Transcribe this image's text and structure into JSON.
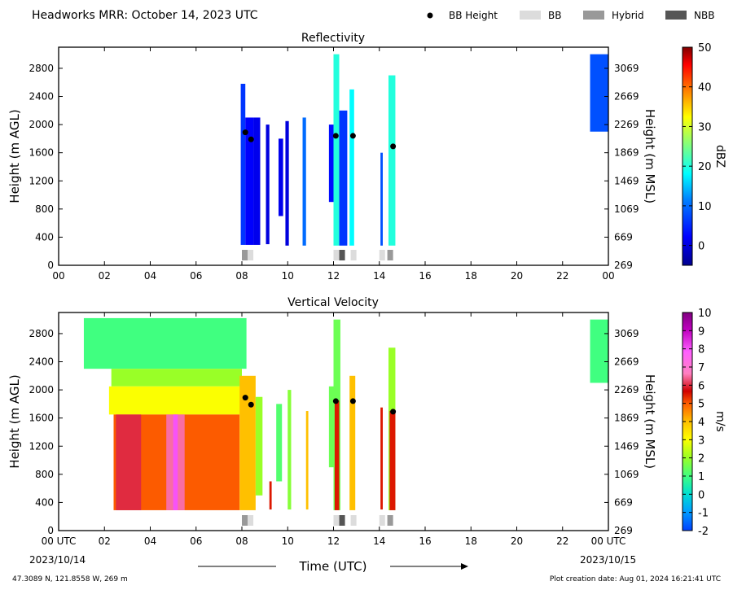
{
  "header": {
    "title": "Headworks MRR:  October 14, 2023 UTC",
    "legend": [
      {
        "label": "BB Height",
        "kind": "dot",
        "color": "#000000"
      },
      {
        "label": "BB",
        "kind": "box",
        "color": "#dcdcdc"
      },
      {
        "label": "Hybrid",
        "kind": "box",
        "color": "#999999"
      },
      {
        "label": "NBB",
        "kind": "box",
        "color": "#555555"
      }
    ]
  },
  "footer": {
    "location": "47.3089 N, 121.8558 W, 269 m",
    "creation": "Plot creation date: Aug 01, 2024 16:21:41 UTC",
    "xlabel": "Time (UTC)",
    "start_date": "2023/10/14",
    "end_date": "2023/10/15"
  },
  "chart_data": [
    {
      "type": "heatmap",
      "title": "Reflectivity",
      "ylabel": "Height (m AGL)",
      "ylabel_right": "Height (m MSL)",
      "xlim": [
        0,
        24
      ],
      "ylim": [
        0,
        3100
      ],
      "x_ticks": [
        "00",
        "02",
        "04",
        "06",
        "08",
        "10",
        "12",
        "14",
        "16",
        "18",
        "20",
        "22",
        "00"
      ],
      "y_ticks": [
        0,
        400,
        800,
        1200,
        1600,
        2000,
        2400,
        2800
      ],
      "y_ticks_right": [
        "269",
        "669",
        "1069",
        "1469",
        "1869",
        "2269",
        "2669",
        "3069"
      ],
      "colorbar": {
        "label": "dBZ",
        "min": -5,
        "max": 50,
        "ticks": [
          0,
          10,
          20,
          30,
          40,
          50
        ]
      },
      "bb_height": [
        {
          "x": 8.15,
          "y": 1890
        },
        {
          "x": 8.4,
          "y": 1790
        },
        {
          "x": 12.1,
          "y": 1840
        },
        {
          "x": 12.85,
          "y": 1840
        },
        {
          "x": 14.6,
          "y": 1690
        }
      ],
      "bb_type": [
        {
          "x0": 8.0,
          "x1": 8.25,
          "type": "Hybrid"
        },
        {
          "x0": 8.25,
          "x1": 8.5,
          "type": "BB"
        },
        {
          "x0": 12.0,
          "x1": 12.25,
          "type": "BB"
        },
        {
          "x0": 12.25,
          "x1": 12.5,
          "type": "NBB"
        },
        {
          "x0": 12.75,
          "x1": 13.0,
          "type": "BB"
        },
        {
          "x0": 14.0,
          "x1": 14.25,
          "type": "BB"
        },
        {
          "x0": 14.35,
          "x1": 14.6,
          "type": "Hybrid"
        }
      ],
      "regions": [
        {
          "x0": 7.95,
          "x1": 8.15,
          "y0": 290,
          "y1": 2580,
          "value": 6
        },
        {
          "x0": 8.15,
          "x1": 8.5,
          "y0": 290,
          "y1": 2100,
          "value": 2
        },
        {
          "x0": 8.5,
          "x1": 8.8,
          "y0": 290,
          "y1": 2100,
          "value": 1
        },
        {
          "x0": 9.05,
          "x1": 9.2,
          "y0": 300,
          "y1": 2000,
          "value": 0
        },
        {
          "x0": 9.6,
          "x1": 9.8,
          "y0": 700,
          "y1": 1800,
          "value": 1
        },
        {
          "x0": 9.9,
          "x1": 10.05,
          "y0": 280,
          "y1": 2050,
          "value": 0
        },
        {
          "x0": 10.65,
          "x1": 10.8,
          "y0": 280,
          "y1": 2100,
          "value": 10
        },
        {
          "x0": 11.8,
          "x1": 12.0,
          "y0": 900,
          "y1": 2000,
          "value": 3
        },
        {
          "x0": 12.0,
          "x1": 12.25,
          "y0": 280,
          "y1": 3000,
          "value": 20
        },
        {
          "x0": 12.25,
          "x1": 12.6,
          "y0": 280,
          "y1": 2200,
          "value": 6
        },
        {
          "x0": 12.7,
          "x1": 12.9,
          "y0": 280,
          "y1": 2500,
          "value": 18
        },
        {
          "x0": 14.05,
          "x1": 14.15,
          "y0": 280,
          "y1": 1600,
          "value": 8
        },
        {
          "x0": 14.4,
          "x1": 14.7,
          "y0": 280,
          "y1": 2700,
          "value": 20
        },
        {
          "x0": 23.2,
          "x1": 24.0,
          "y0": 1900,
          "y1": 3000,
          "value": 8
        }
      ]
    },
    {
      "type": "heatmap",
      "title": "Vertical Velocity",
      "ylabel": "Height (m AGL)",
      "ylabel_right": "Height (m MSL)",
      "xlim": [
        0,
        24
      ],
      "ylim": [
        0,
        3100
      ],
      "x_ticks": [
        "00 UTC",
        "02",
        "04",
        "06",
        "08",
        "10",
        "12",
        "14",
        "16",
        "18",
        "20",
        "22",
        "00 UTC"
      ],
      "y_ticks": [
        0,
        400,
        800,
        1200,
        1600,
        2000,
        2400,
        2800
      ],
      "y_ticks_right": [
        "269",
        "669",
        "1069",
        "1469",
        "1869",
        "2269",
        "2669",
        "3069"
      ],
      "colorbar": {
        "label": "m/s",
        "min": -2,
        "max": 10,
        "ticks": [
          -2,
          -1,
          0,
          1,
          2,
          3,
          4,
          5,
          6,
          7,
          8,
          9,
          10
        ]
      },
      "bb_height": [
        {
          "x": 8.15,
          "y": 1890
        },
        {
          "x": 8.4,
          "y": 1790
        },
        {
          "x": 12.1,
          "y": 1840
        },
        {
          "x": 12.85,
          "y": 1840
        },
        {
          "x": 14.6,
          "y": 1690
        }
      ],
      "bb_type": [
        {
          "x0": 8.0,
          "x1": 8.25,
          "type": "Hybrid"
        },
        {
          "x0": 8.25,
          "x1": 8.5,
          "type": "BB"
        },
        {
          "x0": 12.0,
          "x1": 12.25,
          "type": "BB"
        },
        {
          "x0": 12.25,
          "x1": 12.5,
          "type": "NBB"
        },
        {
          "x0": 12.75,
          "x1": 13.0,
          "type": "BB"
        },
        {
          "x0": 14.0,
          "x1": 14.25,
          "type": "BB"
        },
        {
          "x0": 14.35,
          "x1": 14.6,
          "type": "Hybrid"
        }
      ],
      "regions": [
        {
          "x0": 1.1,
          "x1": 8.2,
          "y0": 2300,
          "y1": 3020,
          "value": 1.0
        },
        {
          "x0": 2.3,
          "x1": 8.0,
          "y0": 2050,
          "y1": 2300,
          "value": 2.0
        },
        {
          "x0": 2.2,
          "x1": 8.0,
          "y0": 1650,
          "y1": 2050,
          "value": 3.0
        },
        {
          "x0": 2.4,
          "x1": 7.9,
          "y0": 290,
          "y1": 1650,
          "value": 5.0
        },
        {
          "x0": 2.5,
          "x1": 3.6,
          "y0": 290,
          "y1": 1650,
          "value": 6.0
        },
        {
          "x0": 4.7,
          "x1": 5.5,
          "y0": 290,
          "y1": 1650,
          "value": 6.5
        },
        {
          "x0": 5.0,
          "x1": 5.2,
          "y0": 290,
          "y1": 1650,
          "value": 8.0
        },
        {
          "x0": 7.9,
          "x1": 8.6,
          "y0": 290,
          "y1": 2200,
          "value": 4.0
        },
        {
          "x0": 8.6,
          "x1": 8.9,
          "y0": 500,
          "y1": 1900,
          "value": 2.0
        },
        {
          "x0": 9.2,
          "x1": 9.3,
          "y0": 300,
          "y1": 700,
          "value": 5.5
        },
        {
          "x0": 9.5,
          "x1": 9.75,
          "y0": 700,
          "y1": 1800,
          "value": 1.2
        },
        {
          "x0": 10.0,
          "x1": 10.15,
          "y0": 300,
          "y1": 2000,
          "value": 1.8
        },
        {
          "x0": 10.8,
          "x1": 10.9,
          "y0": 300,
          "y1": 1700,
          "value": 4.0
        },
        {
          "x0": 11.8,
          "x1": 12.0,
          "y0": 900,
          "y1": 2050,
          "value": 1.5
        },
        {
          "x0": 12.0,
          "x1": 12.3,
          "y0": 290,
          "y1": 3000,
          "value": 1.5
        },
        {
          "x0": 12.05,
          "x1": 12.25,
          "y0": 290,
          "y1": 1850,
          "value": 5.5
        },
        {
          "x0": 12.7,
          "x1": 12.95,
          "y0": 290,
          "y1": 2200,
          "value": 4.0
        },
        {
          "x0": 14.05,
          "x1": 14.15,
          "y0": 300,
          "y1": 1750,
          "value": 5.5
        },
        {
          "x0": 14.4,
          "x1": 14.7,
          "y0": 290,
          "y1": 2600,
          "value": 2.0
        },
        {
          "x0": 14.45,
          "x1": 14.7,
          "y0": 290,
          "y1": 1700,
          "value": 5.5
        },
        {
          "x0": 23.2,
          "x1": 24.0,
          "y0": 2100,
          "y1": 3000,
          "value": 1.0
        }
      ]
    }
  ]
}
